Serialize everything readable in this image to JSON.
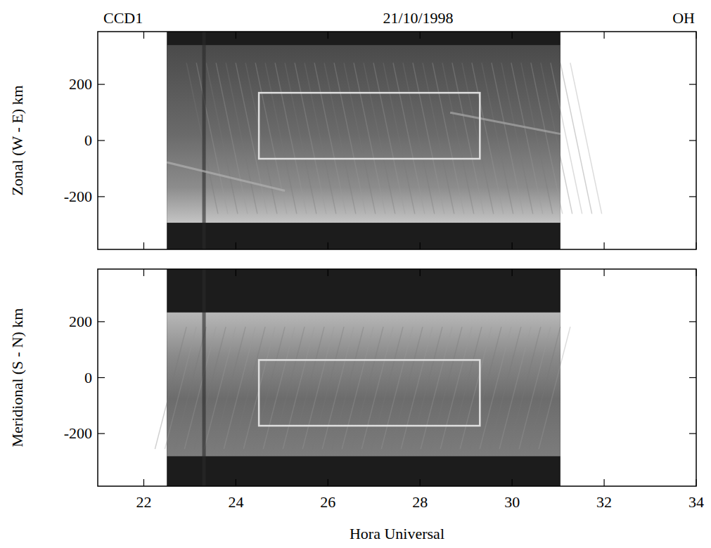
{
  "chart_data": [
    {
      "type": "keogram",
      "title_left": "CCD1",
      "title": "21/10/1998",
      "title_right": "OH",
      "ylabel": "Zonal (W - E) km",
      "xlim": [
        21,
        34
      ],
      "xticks": [
        22,
        24,
        26,
        28,
        30,
        32,
        34
      ],
      "ylim": [
        -388,
        388
      ],
      "yticks": [
        -200,
        0,
        200
      ],
      "tick_labels": "y",
      "image_x": [
        22.5,
        31.05
      ],
      "image_y": [
        -293,
        340
      ],
      "box_x": [
        24.5,
        29.3
      ],
      "box_y": [
        -65,
        170
      ]
    },
    {
      "type": "keogram",
      "ylabel": "Meridional (S - N) km",
      "xlabel": "Hora Universal",
      "xlim": [
        21,
        34
      ],
      "xticks": [
        22,
        24,
        26,
        28,
        30,
        32,
        34
      ],
      "ylim": [
        -388,
        388
      ],
      "yticks": [
        -200,
        0,
        200
      ],
      "image_x": [
        22.5,
        31.05
      ],
      "image_y": [
        -281,
        233
      ],
      "box_x": [
        24.5,
        29.3
      ],
      "box_y": [
        -172,
        63
      ]
    }
  ]
}
